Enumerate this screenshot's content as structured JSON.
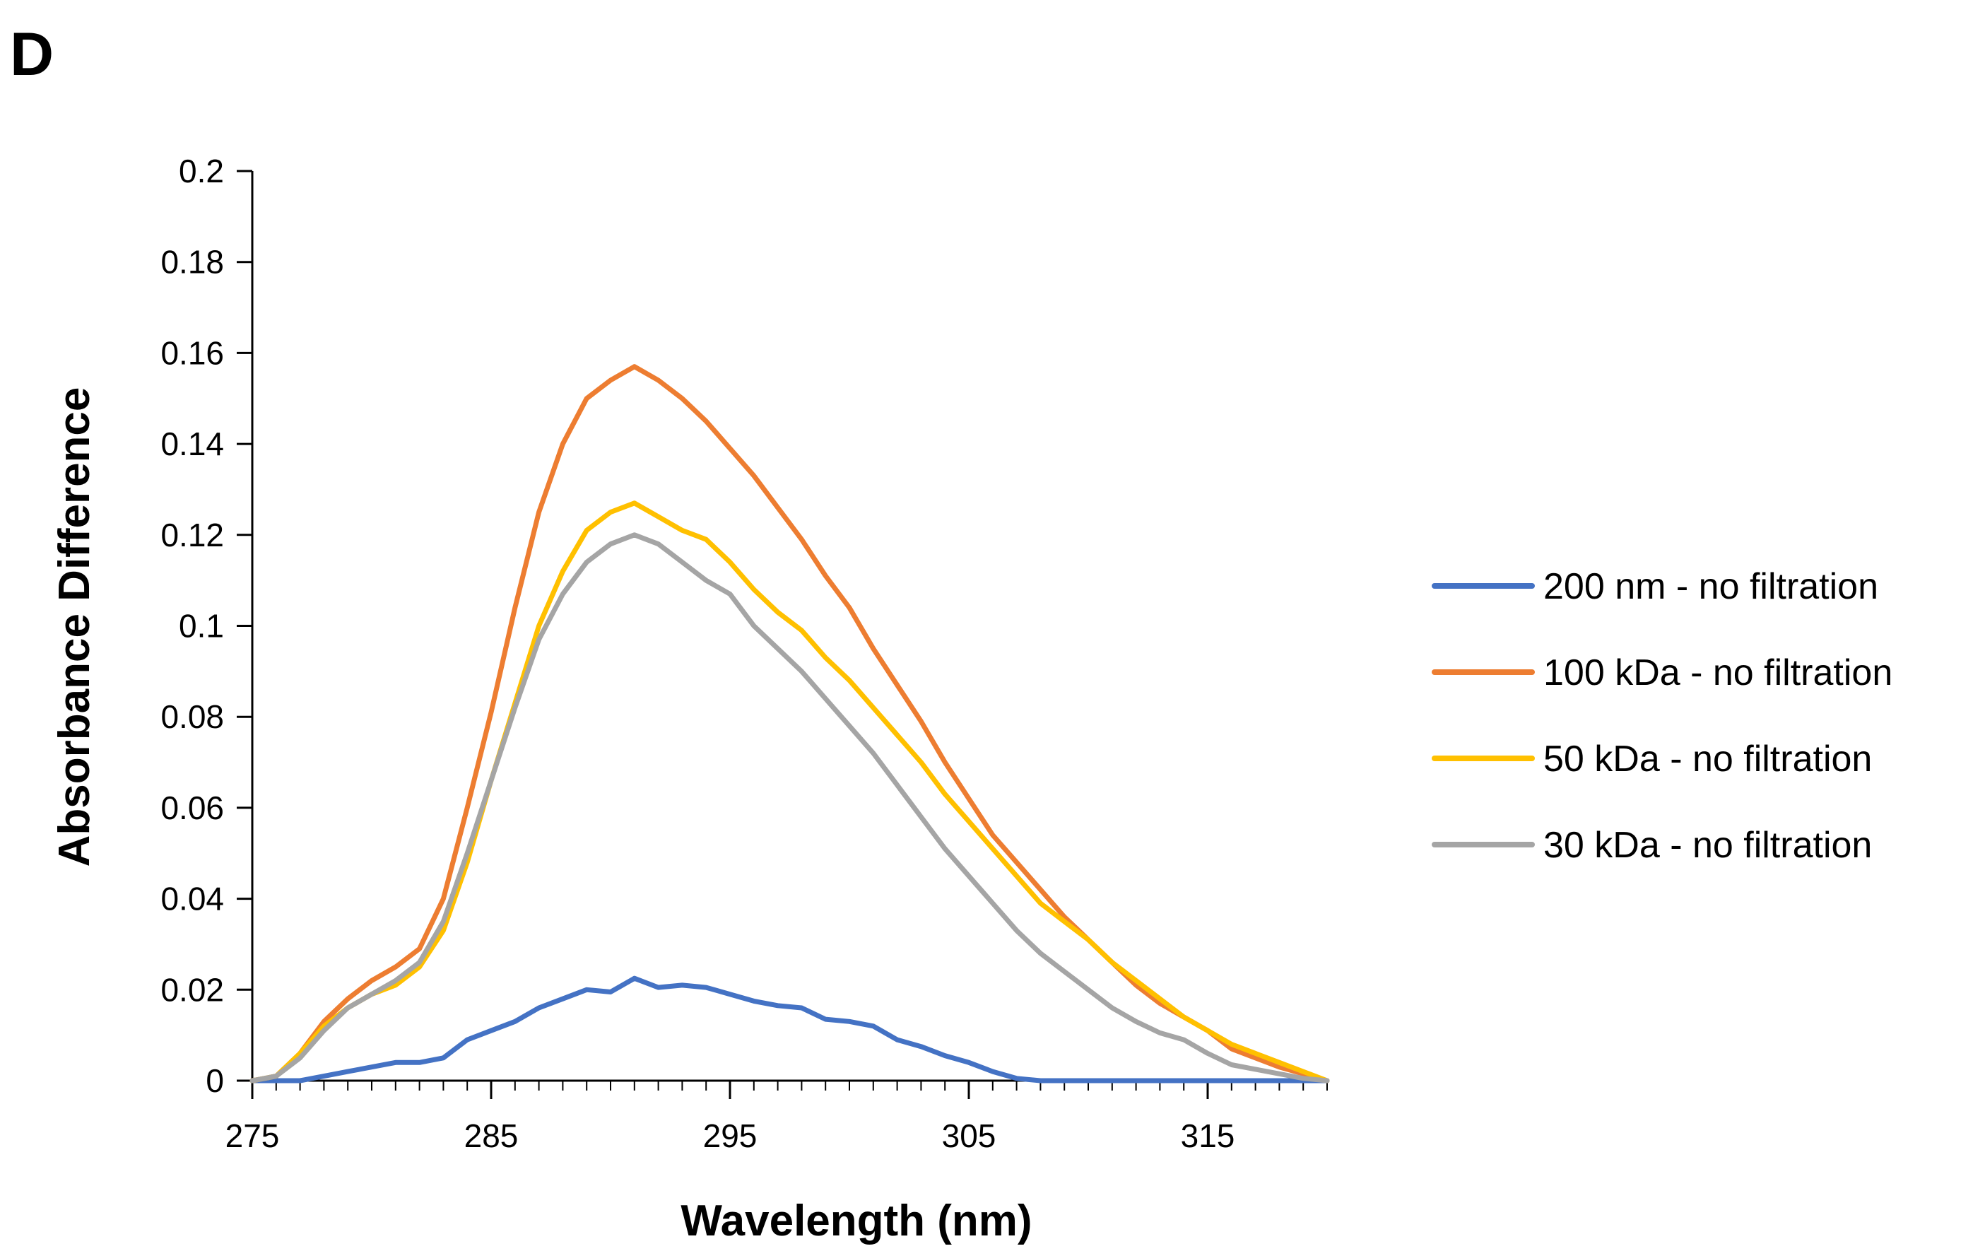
{
  "panel_label": "D",
  "chart_data": {
    "type": "line",
    "title": "",
    "xlabel": "Wavelength (nm)",
    "ylabel": "Absorbance Difference",
    "xlim": [
      275,
      320
    ],
    "ylim": [
      0,
      0.2
    ],
    "xticks": [
      275,
      285,
      295,
      305,
      315
    ],
    "xtick_labels": [
      "275",
      "285",
      "295",
      "305",
      "315"
    ],
    "yticks": [
      0,
      0.02,
      0.04,
      0.06,
      0.08,
      0.1,
      0.12,
      0.14,
      0.16,
      0.18,
      0.2
    ],
    "ytick_labels": [
      "0",
      "0.02",
      "0.04",
      "0.06",
      "0.08",
      "0.1",
      "0.12",
      "0.14",
      "0.16",
      "0.18",
      "0.2"
    ],
    "grid": false,
    "legend_position": "right",
    "x": [
      275,
      276,
      277,
      278,
      279,
      280,
      281,
      282,
      283,
      284,
      285,
      286,
      287,
      288,
      289,
      290,
      291,
      292,
      293,
      294,
      295,
      296,
      297,
      298,
      299,
      300,
      301,
      302,
      303,
      304,
      305,
      306,
      307,
      308,
      309,
      310,
      311,
      312,
      313,
      314,
      315,
      316,
      317,
      318,
      319,
      320
    ],
    "series": [
      {
        "name": "200 nm - no filtration",
        "color": "#4472C4",
        "values": [
          0,
          0,
          0,
          0.001,
          0.002,
          0.003,
          0.004,
          0.004,
          0.005,
          0.009,
          0.011,
          0.013,
          0.016,
          0.018,
          0.02,
          0.0195,
          0.0225,
          0.0205,
          0.021,
          0.0205,
          0.019,
          0.0175,
          0.0165,
          0.016,
          0.0135,
          0.013,
          0.012,
          0.009,
          0.0075,
          0.0055,
          0.004,
          0.002,
          0.0005,
          0,
          0,
          0,
          0,
          0,
          0,
          0,
          0,
          0,
          0,
          0,
          0,
          0
        ]
      },
      {
        "name": "100 kDa - no filtration",
        "color": "#ED7D31",
        "values": [
          0,
          0.001,
          0.006,
          0.013,
          0.018,
          0.022,
          0.025,
          0.029,
          0.04,
          0.06,
          0.081,
          0.104,
          0.125,
          0.14,
          0.15,
          0.154,
          0.157,
          0.154,
          0.15,
          0.145,
          0.139,
          0.133,
          0.126,
          0.119,
          0.111,
          0.104,
          0.095,
          0.087,
          0.079,
          0.07,
          0.062,
          0.054,
          0.048,
          0.042,
          0.036,
          0.031,
          0.026,
          0.021,
          0.017,
          0.014,
          0.011,
          0.007,
          0.005,
          0.003,
          0.0015,
          0
        ]
      },
      {
        "name": "50 kDa - no filtration",
        "color": "#FFC000",
        "values": [
          0,
          0.001,
          0.006,
          0.012,
          0.016,
          0.019,
          0.021,
          0.025,
          0.033,
          0.048,
          0.066,
          0.083,
          0.1,
          0.112,
          0.121,
          0.125,
          0.127,
          0.124,
          0.121,
          0.119,
          0.114,
          0.108,
          0.103,
          0.099,
          0.093,
          0.088,
          0.082,
          0.076,
          0.07,
          0.063,
          0.057,
          0.051,
          0.045,
          0.039,
          0.035,
          0.031,
          0.026,
          0.022,
          0.018,
          0.014,
          0.011,
          0.008,
          0.006,
          0.004,
          0.002,
          0
        ]
      },
      {
        "name": "30 kDa - no filtration",
        "color": "#A5A5A5",
        "values": [
          0,
          0.001,
          0.005,
          0.011,
          0.016,
          0.019,
          0.022,
          0.026,
          0.035,
          0.05,
          0.066,
          0.082,
          0.097,
          0.107,
          0.114,
          0.118,
          0.12,
          0.118,
          0.114,
          0.11,
          0.107,
          0.1,
          0.095,
          0.09,
          0.084,
          0.078,
          0.072,
          0.065,
          0.058,
          0.051,
          0.045,
          0.039,
          0.033,
          0.028,
          0.024,
          0.02,
          0.016,
          0.013,
          0.0105,
          0.009,
          0.006,
          0.0035,
          0.0025,
          0.0015,
          0.0005,
          0
        ]
      }
    ]
  }
}
